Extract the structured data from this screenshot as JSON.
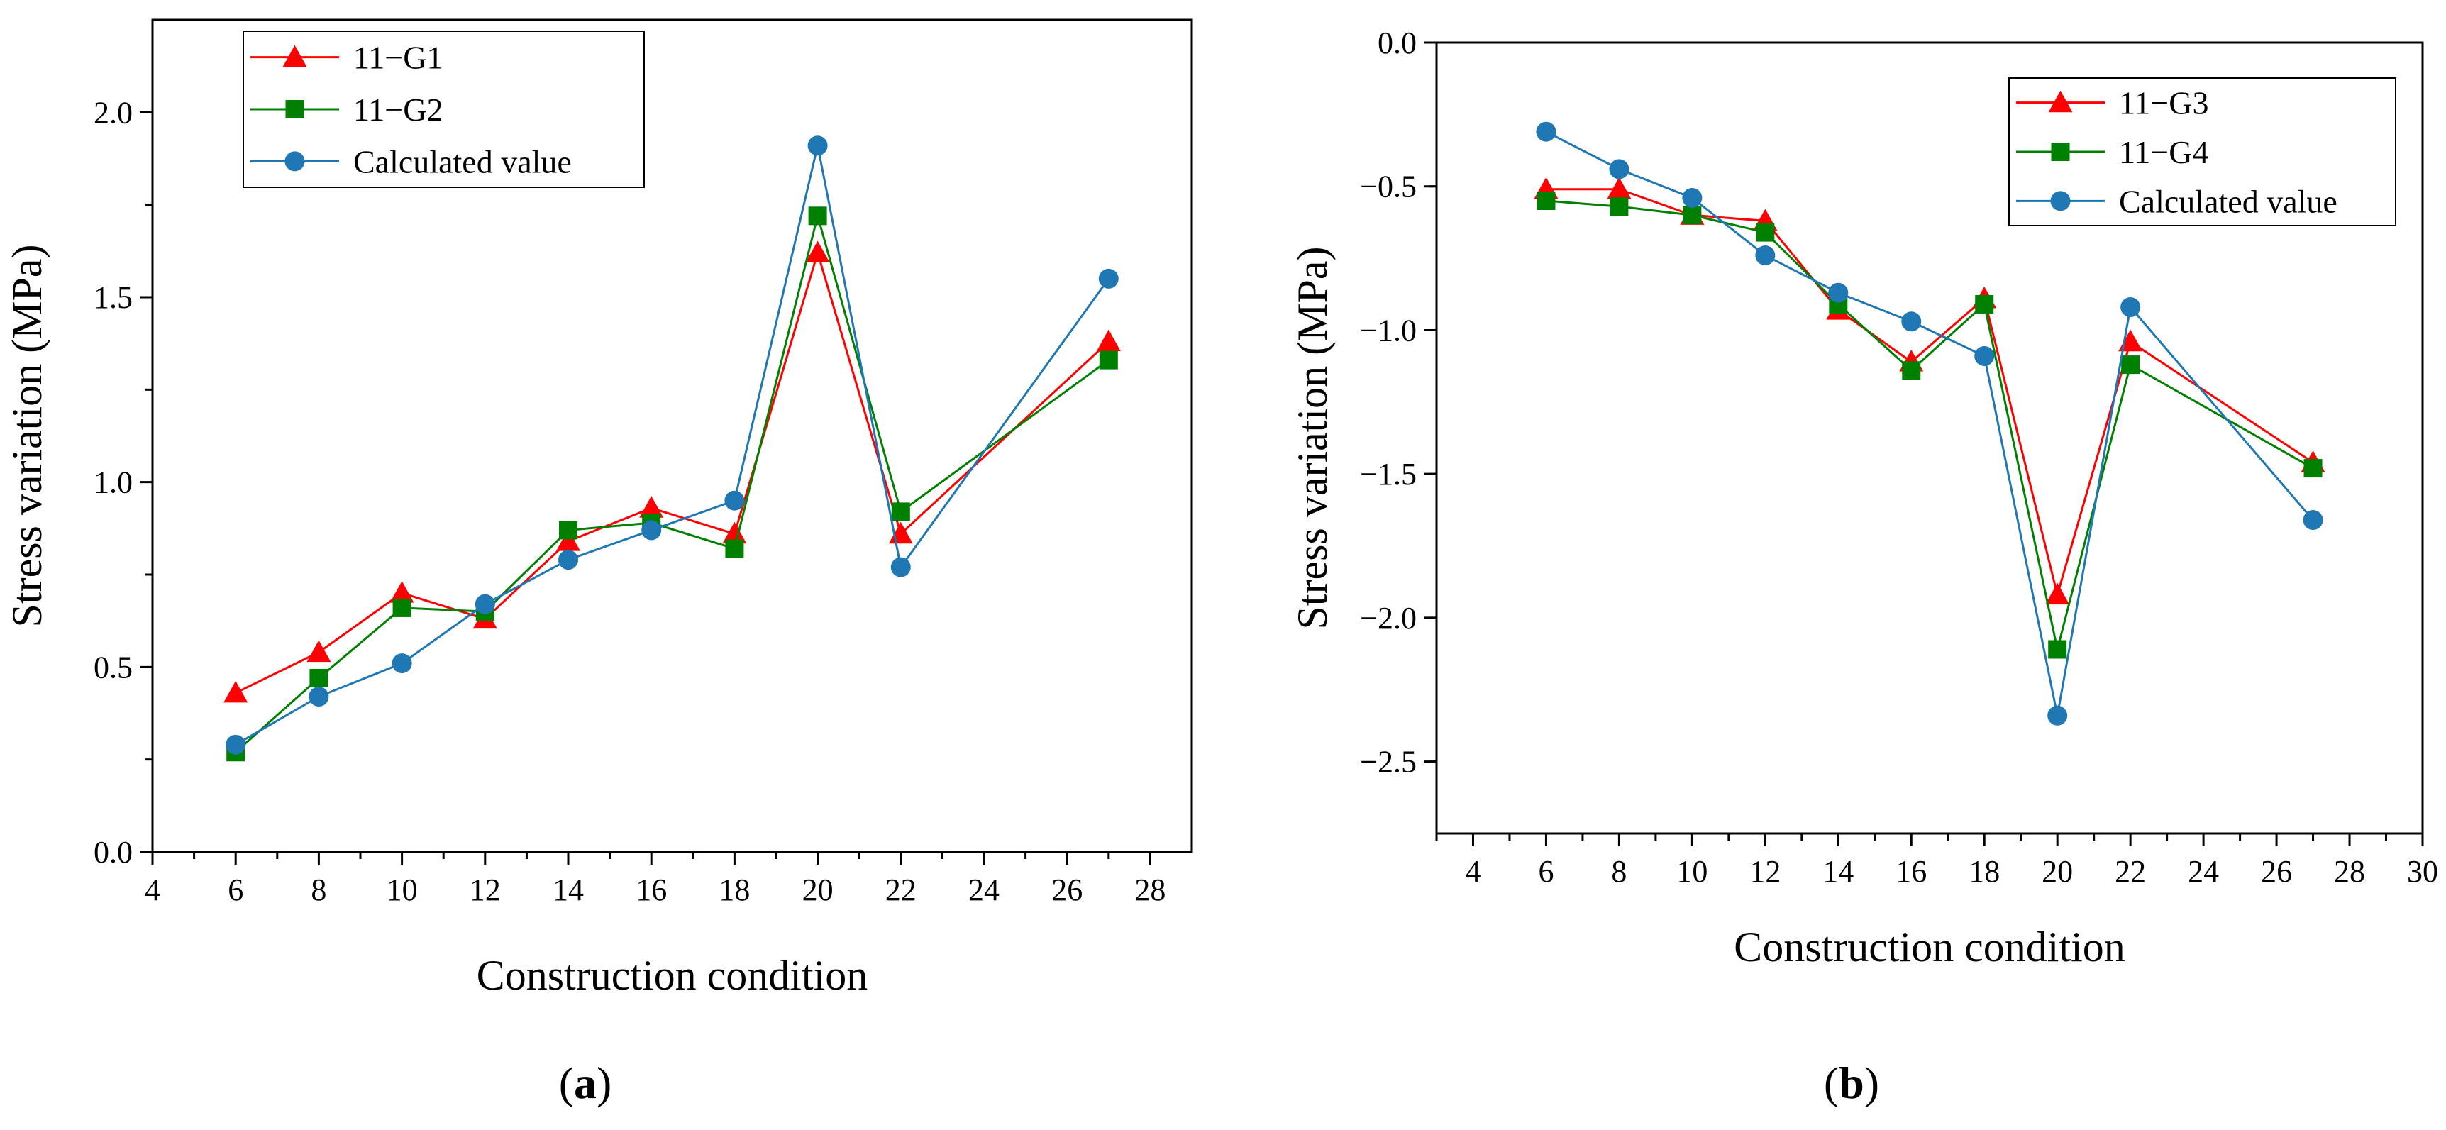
{
  "chart_data": [
    {
      "type": "line",
      "panel_label": "a",
      "xlabel": "Construction condition",
      "ylabel": "Stress variation (MPa)",
      "xlim": [
        4,
        29
      ],
      "ylim": [
        0,
        2.25
      ],
      "xticks": [
        4,
        6,
        8,
        10,
        12,
        14,
        16,
        18,
        20,
        22,
        24,
        26,
        28
      ],
      "yticks": [
        0.0,
        0.5,
        1.0,
        1.5,
        2.0
      ],
      "ytick_labels": [
        "0.0",
        "0.5",
        "1.0",
        "1.5",
        "2.0"
      ],
      "legend_position": "top-left",
      "x": [
        6,
        8,
        10,
        12,
        14,
        16,
        18,
        20,
        22,
        27
      ],
      "series": [
        {
          "name": "11−G1",
          "color": "#ff0000",
          "marker": "triangle",
          "values": [
            0.43,
            0.54,
            0.7,
            0.63,
            0.84,
            0.93,
            0.86,
            1.62,
            0.86,
            1.38
          ]
        },
        {
          "name": "11−G2",
          "color": "#008000",
          "marker": "square",
          "values": [
            0.27,
            0.47,
            0.66,
            0.65,
            0.87,
            0.89,
            0.82,
            1.72,
            0.92,
            1.33
          ]
        },
        {
          "name": "Calculated value",
          "color": "#1f77b4",
          "marker": "circle",
          "values": [
            0.29,
            0.42,
            0.51,
            0.67,
            0.79,
            0.87,
            0.95,
            1.91,
            0.77,
            1.55
          ]
        }
      ]
    },
    {
      "type": "line",
      "panel_label": "b",
      "xlabel": "Construction condition",
      "ylabel": "Stress variation (MPa)",
      "xlim": [
        3,
        30
      ],
      "ylim": [
        -2.75,
        0.0
      ],
      "xticks": [
        4,
        6,
        8,
        10,
        12,
        14,
        16,
        18,
        20,
        22,
        24,
        26,
        28,
        30
      ],
      "yticks": [
        -2.5,
        -2.0,
        -1.5,
        -1.0,
        -0.5,
        0.0
      ],
      "ytick_labels": [
        "−2.5",
        "−2.0",
        "−1.5",
        "−1.0",
        "−0.5",
        "0.0"
      ],
      "legend_position": "top-right",
      "x": [
        6,
        8,
        10,
        12,
        14,
        16,
        18,
        20,
        22,
        27
      ],
      "series": [
        {
          "name": "11−G3",
          "color": "#ff0000",
          "marker": "triangle",
          "values": [
            -0.51,
            -0.51,
            -0.6,
            -0.62,
            -0.93,
            -1.11,
            -0.89,
            -1.92,
            -1.04,
            -1.46
          ]
        },
        {
          "name": "11−G4",
          "color": "#008000",
          "marker": "square",
          "values": [
            -0.55,
            -0.57,
            -0.6,
            -0.66,
            -0.91,
            -1.14,
            -0.91,
            -2.11,
            -1.12,
            -1.48
          ]
        },
        {
          "name": "Calculated value",
          "color": "#1f77b4",
          "marker": "circle",
          "values": [
            -0.31,
            -0.44,
            -0.54,
            -0.74,
            -0.87,
            -0.97,
            -1.09,
            -2.34,
            -0.92,
            -1.66
          ]
        }
      ]
    }
  ]
}
